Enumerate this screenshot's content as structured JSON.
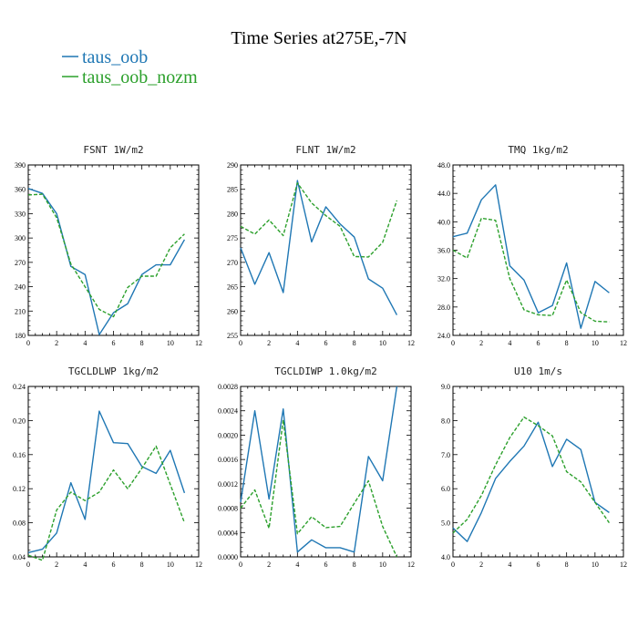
{
  "figure": {
    "title": "Time Series at275E,-7N",
    "legend": [
      {
        "label": "taus_oob",
        "color": "#1f77b4",
        "dash": "solid"
      },
      {
        "label": "taus_oob_nozm",
        "color": "#2ca02c",
        "dash": "dashed"
      }
    ]
  },
  "chart_data": [
    {
      "type": "line",
      "title": "FSNT  1W/m2",
      "x": [
        0,
        1,
        2,
        3,
        4,
        5,
        6,
        7,
        8,
        9,
        10,
        11
      ],
      "xlim": [
        0,
        12
      ],
      "xticks": [
        "0",
        "2",
        "4",
        "6",
        "8",
        "10",
        "12"
      ],
      "ylim": [
        180,
        390
      ],
      "yticks": [
        "180",
        "210",
        "240",
        "270",
        "300",
        "330",
        "360",
        "390"
      ],
      "series": [
        {
          "name": "taus_oob",
          "values": [
            361,
            355,
            330,
            265,
            255,
            181,
            208,
            219,
            255,
            267,
            267,
            298
          ]
        },
        {
          "name": "taus_oob_nozm",
          "values": [
            353,
            354,
            325,
            268,
            240,
            212,
            203,
            239,
            253,
            253,
            288,
            305
          ]
        }
      ]
    },
    {
      "type": "line",
      "title": "FLNT  1W/m2",
      "x": [
        0,
        1,
        2,
        3,
        4,
        5,
        6,
        7,
        8,
        9,
        10,
        11
      ],
      "xlim": [
        0,
        12
      ],
      "xticks": [
        "0",
        "2",
        "4",
        "6",
        "8",
        "10",
        "12"
      ],
      "ylim": [
        255,
        290
      ],
      "yticks": [
        "255",
        "260",
        "265",
        "270",
        "275",
        "280",
        "285",
        "290"
      ],
      "series": [
        {
          "name": "taus_oob",
          "values": [
            273,
            265.5,
            272,
            263.8,
            286.8,
            274.2,
            281.4,
            277.9,
            275.2,
            266.6,
            264.7,
            259.2
          ]
        },
        {
          "name": "taus_oob_nozm",
          "values": [
            277.4,
            275.8,
            278.7,
            275.5,
            286.3,
            282.2,
            279.6,
            277.4,
            271.2,
            271.1,
            274.1,
            282.7
          ]
        }
      ]
    },
    {
      "type": "line",
      "title": "TMQ  1kg/m2",
      "x": [
        0,
        1,
        2,
        3,
        4,
        5,
        6,
        7,
        8,
        9,
        10,
        11
      ],
      "xlim": [
        0,
        12
      ],
      "xticks": [
        "0",
        "2",
        "4",
        "6",
        "8",
        "10",
        "12"
      ],
      "ylim": [
        24,
        48
      ],
      "yticks": [
        "24.0",
        "28.0",
        "32.0",
        "36.0",
        "40.0",
        "44.0",
        "48.0"
      ],
      "series": [
        {
          "name": "taus_oob",
          "values": [
            37.9,
            38.4,
            43.1,
            45.2,
            33.8,
            31.8,
            27.2,
            28.2,
            34.2,
            25.0,
            31.6,
            30.0
          ]
        },
        {
          "name": "taus_oob_nozm",
          "values": [
            36.0,
            34.9,
            40.5,
            40.2,
            32.0,
            27.6,
            26.9,
            26.8,
            31.8,
            27.2,
            26.0,
            25.9
          ]
        }
      ]
    },
    {
      "type": "line",
      "title": "TGCLDLWP  1kg/m2",
      "x": [
        0,
        1,
        2,
        3,
        4,
        5,
        6,
        7,
        8,
        9,
        10,
        11
      ],
      "xlim": [
        0,
        12
      ],
      "xticks": [
        "0",
        "2",
        "4",
        "6",
        "8",
        "10",
        "12"
      ],
      "ylim": [
        0.04,
        0.24
      ],
      "yticks": [
        "0.04",
        "0.08",
        "0.12",
        "0.16",
        "0.20",
        "0.24"
      ],
      "series": [
        {
          "name": "taus_oob",
          "values": [
            0.045,
            0.049,
            0.068,
            0.127,
            0.084,
            0.211,
            0.174,
            0.173,
            0.146,
            0.138,
            0.165,
            0.115
          ]
        },
        {
          "name": "taus_oob_nozm",
          "values": [
            0.042,
            0.036,
            0.095,
            0.116,
            0.106,
            0.116,
            0.142,
            0.12,
            0.144,
            0.17,
            0.125,
            0.08
          ]
        }
      ]
    },
    {
      "type": "line",
      "title": "TGCLDIWP  1.0kg/m2",
      "x": [
        0,
        1,
        2,
        3,
        4,
        5,
        6,
        7,
        8,
        9,
        10,
        11
      ],
      "xlim": [
        0,
        12
      ],
      "xticks": [
        "0",
        "2",
        "4",
        "6",
        "8",
        "10",
        "12"
      ],
      "ylim": [
        0,
        0.0028
      ],
      "yticks": [
        "0.0000",
        "0.0004",
        "0.0008",
        "0.0012",
        "0.0016",
        "0.0020",
        "0.0024",
        "0.0028"
      ],
      "series": [
        {
          "name": "taus_oob",
          "values": [
            0.0009,
            0.0024,
            0.00095,
            0.00243,
            8e-05,
            0.00028,
            0.00015,
            0.00015,
            8e-05,
            0.00165,
            0.00125,
            0.0028
          ]
        },
        {
          "name": "taus_oob_nozm",
          "values": [
            0.0008,
            0.0011,
            0.00047,
            0.00225,
            0.00038,
            0.00066,
            0.00048,
            0.0005,
            0.00088,
            0.00125,
            0.0005,
            0.0
          ]
        }
      ]
    },
    {
      "type": "line",
      "title": "U10  1m/s",
      "x": [
        0,
        1,
        2,
        3,
        4,
        5,
        6,
        7,
        8,
        9,
        10,
        11
      ],
      "xlim": [
        0,
        12
      ],
      "xticks": [
        "0",
        "2",
        "4",
        "6",
        "8",
        "10",
        "12"
      ],
      "ylim": [
        4,
        9
      ],
      "yticks": [
        "4.0",
        "5.0",
        "6.0",
        "7.0",
        "8.0",
        "9.0"
      ],
      "series": [
        {
          "name": "taus_oob",
          "values": [
            4.85,
            4.45,
            5.3,
            6.3,
            6.8,
            7.25,
            7.95,
            6.65,
            7.45,
            7.15,
            5.6,
            5.3
          ]
        },
        {
          "name": "taus_oob_nozm",
          "values": [
            4.7,
            5.1,
            5.8,
            6.7,
            7.5,
            8.1,
            7.85,
            7.55,
            6.5,
            6.2,
            5.6,
            5.0
          ]
        }
      ]
    }
  ]
}
